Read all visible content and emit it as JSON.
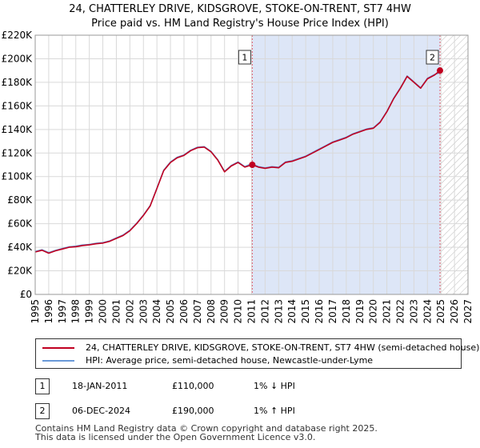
{
  "header": {
    "title_line1": "24, CHATTERLEY DRIVE, KIDSGROVE, STOKE-ON-TRENT, ST7 4HW",
    "title_line2": "Price paid vs. HM Land Registry's House Price Index (HPI)"
  },
  "chart_data": {
    "type": "line",
    "title": "24, CHATTERLEY DRIVE, KIDSGROVE, STOKE-ON-TRENT, ST7 4HW",
    "subtitle": "Price paid vs. HM Land Registry's House Price Index (HPI)",
    "xlim": [
      1995,
      2027
    ],
    "ylim": [
      0,
      220000
    ],
    "x_ticks": [
      1995,
      1996,
      1997,
      1998,
      1999,
      2000,
      2001,
      2002,
      2003,
      2004,
      2005,
      2006,
      2007,
      2008,
      2009,
      2010,
      2011,
      2012,
      2013,
      2014,
      2015,
      2016,
      2017,
      2018,
      2019,
      2020,
      2021,
      2022,
      2023,
      2024,
      2025,
      2026,
      2027
    ],
    "y_ticks": [
      0,
      20000,
      40000,
      60000,
      80000,
      100000,
      120000,
      140000,
      160000,
      180000,
      200000,
      220000
    ],
    "y_tick_labels": [
      "£0",
      "£20K",
      "£40K",
      "£60K",
      "£80K",
      "£100K",
      "£120K",
      "£140K",
      "£160K",
      "£180K",
      "£200K",
      "£220K"
    ],
    "grid": true,
    "shaded_region": {
      "from": 2011.05,
      "to": 2024.93,
      "color": "#dde6f7"
    },
    "hatched_region": {
      "from": 2024.93,
      "to": 2027
    },
    "series": [
      {
        "name": "24, CHATTERLEY DRIVE, KIDSGROVE, STOKE-ON-TRENT, ST7 4HW (semi-detached house)",
        "color": "#c00020",
        "x": [
          1995.0,
          1995.5,
          1996.0,
          1996.5,
          1997.0,
          1997.5,
          1998.0,
          1998.5,
          1999.0,
          1999.5,
          2000.0,
          2000.5,
          2001.0,
          2001.5,
          2002.0,
          2002.5,
          2003.0,
          2003.5,
          2004.0,
          2004.5,
          2005.0,
          2005.5,
          2006.0,
          2006.5,
          2007.0,
          2007.5,
          2008.0,
          2008.5,
          2009.0,
          2009.5,
          2010.0,
          2010.5,
          2011.05,
          2011.5,
          2012.0,
          2012.5,
          2013.0,
          2013.5,
          2014.0,
          2014.5,
          2015.0,
          2015.5,
          2016.0,
          2016.5,
          2017.0,
          2017.5,
          2018.0,
          2018.5,
          2019.0,
          2019.5,
          2020.0,
          2020.5,
          2021.0,
          2021.5,
          2022.0,
          2022.5,
          2023.0,
          2023.5,
          2024.0,
          2024.5,
          2024.93,
          2025.05
        ],
        "y": [
          36000,
          37500,
          35000,
          37000,
          38500,
          40000,
          40500,
          41500,
          42000,
          43000,
          43500,
          45000,
          47500,
          50000,
          54000,
          60000,
          67000,
          75000,
          90000,
          105000,
          112000,
          116000,
          118000,
          122000,
          124500,
          125000,
          121000,
          114000,
          104000,
          109000,
          112000,
          108000,
          110000,
          108000,
          107000,
          108000,
          107500,
          112000,
          113000,
          115000,
          117000,
          120000,
          123000,
          126000,
          129000,
          131000,
          133000,
          136000,
          138000,
          140000,
          141000,
          146000,
          155000,
          166000,
          175000,
          185000,
          180000,
          175000,
          183000,
          186000,
          190000,
          190000
        ]
      },
      {
        "name": "HPI: Average price, semi-detached house, Newcastle-under-Lyme",
        "color": "#6a9ad8",
        "x": [
          1995.0,
          1995.5,
          1996.0,
          1996.5,
          1997.0,
          1997.5,
          1998.0,
          1998.5,
          1999.0,
          1999.5,
          2000.0,
          2000.5,
          2001.0,
          2001.5,
          2002.0,
          2002.5,
          2003.0,
          2003.5,
          2004.0,
          2004.5,
          2005.0,
          2005.5,
          2006.0,
          2006.5,
          2007.0,
          2007.5,
          2008.0,
          2008.5,
          2009.0,
          2009.5,
          2010.0,
          2010.5,
          2011.0,
          2011.5,
          2012.0,
          2012.5,
          2013.0,
          2013.5,
          2014.0,
          2014.5,
          2015.0,
          2015.5,
          2016.0,
          2016.5,
          2017.0,
          2017.5,
          2018.0,
          2018.5,
          2019.0,
          2019.5,
          2020.0,
          2020.5,
          2021.0,
          2021.5,
          2022.0,
          2022.5,
          2023.0,
          2023.5,
          2024.0,
          2024.5,
          2024.9
        ],
        "y": [
          36500,
          38000,
          35500,
          37500,
          39000,
          40500,
          41000,
          42000,
          42500,
          43500,
          44000,
          45500,
          48000,
          50500,
          54500,
          60500,
          67500,
          75500,
          90500,
          105500,
          112500,
          116500,
          118500,
          122500,
          125000,
          125500,
          121500,
          114500,
          104500,
          109500,
          112500,
          108500,
          111000,
          108500,
          107500,
          108500,
          108000,
          112500,
          113500,
          115500,
          117500,
          120500,
          123500,
          126500,
          129500,
          131500,
          133500,
          136500,
          138500,
          140500,
          141500,
          146500,
          155500,
          166500,
          175500,
          185500,
          180500,
          175500,
          183500,
          186500,
          188000
        ]
      }
    ],
    "annotations": [
      {
        "label": "1",
        "x": 2011.05,
        "y": 110000
      },
      {
        "label": "2",
        "x": 2024.93,
        "y": 190000
      }
    ]
  },
  "legend": {
    "items": [
      {
        "label": "24, CHATTERLEY DRIVE, KIDSGROVE, STOKE-ON-TRENT, ST7 4HW (semi-detached house)",
        "color": "#c00020"
      },
      {
        "label": "HPI: Average price, semi-detached house, Newcastle-under-Lyme",
        "color": "#6a9ad8"
      }
    ]
  },
  "sales": [
    {
      "num": "1",
      "date": "18-JAN-2011",
      "price": "£110,000",
      "hpi": "1% ↓ HPI"
    },
    {
      "num": "2",
      "date": "06-DEC-2024",
      "price": "£190,000",
      "hpi": "1% ↑ HPI"
    }
  ],
  "footer": {
    "line1": "Contains HM Land Registry data © Crown copyright and database right 2025.",
    "line2": "This data is licensed under the Open Government Licence v3.0."
  }
}
